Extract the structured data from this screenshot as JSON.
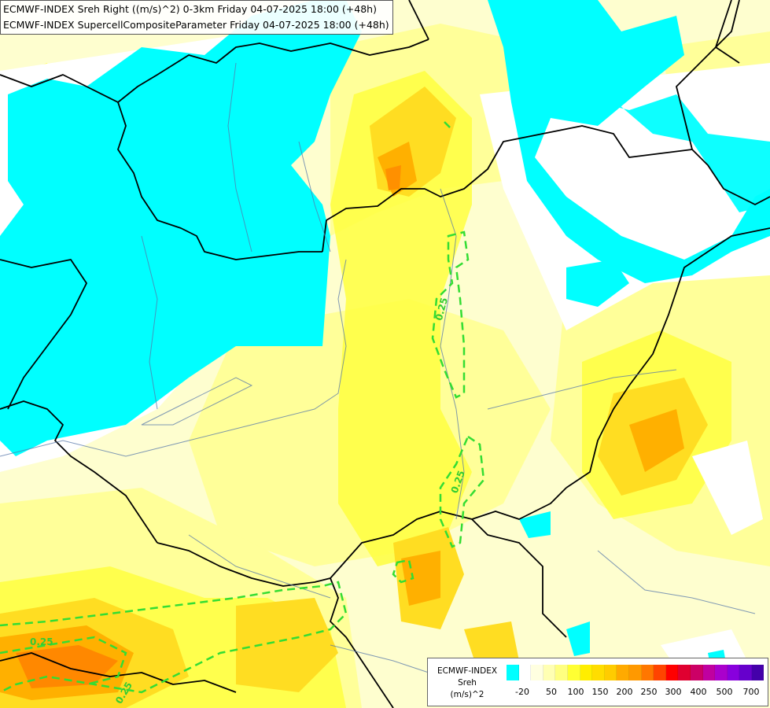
{
  "titles": {
    "line1": "ECMWF-INDEX Sreh Right ((m/s)^2) 0-3km Friday 04-07-2025 18:00 (+48h)",
    "line2": "ECMWF-INDEX SupercellCompositeParameter Friday 04-07-2025 18:00 (+48h)"
  },
  "contour_labels": [
    "0.25",
    "0.25",
    "0.25",
    "0.25"
  ],
  "legend": {
    "title_line1": "ECMWF-INDEX",
    "title_line2": "Sreh",
    "title_line3": "(m/s)^2",
    "colors": [
      "#00ffff",
      "#ffffff",
      "#ffffe0",
      "#ffffb3",
      "#ffff80",
      "#ffff33",
      "#ffee00",
      "#ffdd00",
      "#ffcc00",
      "#ffaa00",
      "#ff9900",
      "#ff7700",
      "#ff4400",
      "#ff0000",
      "#e00030",
      "#cc0066",
      "#c000a0",
      "#aa00cc",
      "#8800dd",
      "#6600cc",
      "#4400aa"
    ],
    "ticks": [
      "-20",
      "50",
      "100",
      "150",
      "200",
      "250",
      "300",
      "400",
      "500",
      "700"
    ]
  },
  "colors": {
    "land": "#fefecf",
    "cyan": "#00ffff",
    "white": "#ffffff",
    "yellow1": "#ffff99",
    "yellow2": "#ffff40",
    "yellow3": "#ffdd22",
    "orange": "#ffb000",
    "deep_orange": "#ff8000",
    "border": "#000000",
    "river": "#5577aa",
    "contour": "#33dd33"
  }
}
